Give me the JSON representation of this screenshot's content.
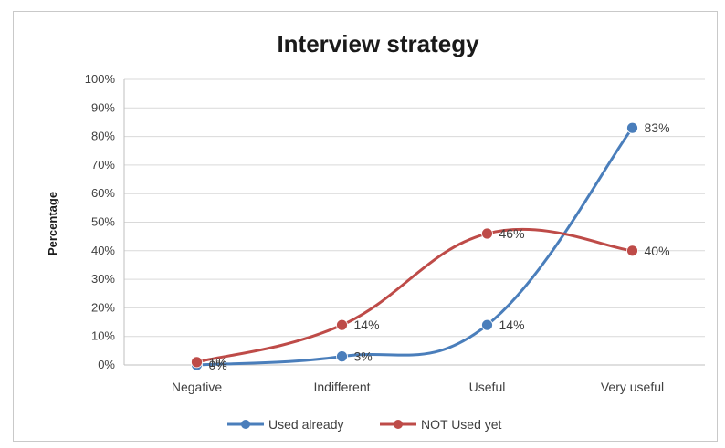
{
  "chart_data": {
    "type": "line",
    "title": "Interview strategy",
    "ylabel": "Percentage",
    "xlabel": "",
    "categories": [
      "Negative",
      "Indifferent",
      "Useful",
      "Very useful"
    ],
    "yticks": [
      "0%",
      "10%",
      "20%",
      "30%",
      "40%",
      "50%",
      "60%",
      "70%",
      "80%",
      "90%",
      "100%"
    ],
    "ylim": [
      0,
      100
    ],
    "grid": true,
    "legend_position": "bottom",
    "series": [
      {
        "name": "Used already",
        "color": "#4a7ebb",
        "values": [
          0,
          3,
          14,
          83
        ],
        "labels": [
          "0%",
          "3%",
          "14%",
          "83%"
        ]
      },
      {
        "name": "NOT Used yet",
        "color": "#be4b48",
        "values": [
          1,
          14,
          46,
          40
        ],
        "labels": [
          "1%",
          "14%",
          "46%",
          "40%"
        ]
      }
    ]
  }
}
